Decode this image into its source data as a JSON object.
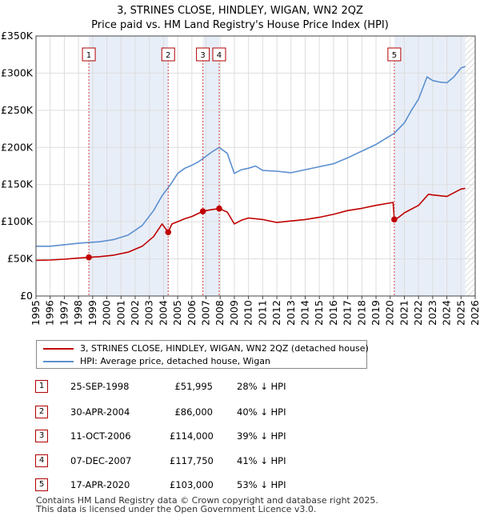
{
  "header": {
    "title": "3, STRINES CLOSE, HINDLEY, WIGAN, WN2 2QZ",
    "subtitle": "Price paid vs. HM Land Registry's House Price Index (HPI)"
  },
  "chart_data": {
    "type": "line",
    "title": "3, STRINES CLOSE, HINDLEY, WIGAN, WN2 2QZ",
    "subtitle": "Price paid vs. HM Land Registry's House Price Index (HPI)",
    "xlabel": "",
    "ylabel": "",
    "xlim": [
      1995,
      2026
    ],
    "ylim": [
      0,
      350000
    ],
    "grid": true,
    "x_ticks": [
      "1995",
      "1996",
      "1997",
      "1998",
      "1999",
      "2000",
      "2001",
      "2002",
      "2003",
      "2004",
      "2005",
      "2006",
      "2007",
      "2008",
      "2009",
      "2010",
      "2011",
      "2012",
      "2013",
      "2014",
      "2015",
      "2016",
      "2017",
      "2018",
      "2019",
      "2020",
      "2021",
      "2022",
      "2023",
      "2024",
      "2025",
      "2026"
    ],
    "y_ticks": [
      "£0",
      "£50K",
      "£100K",
      "£150K",
      "£200K",
      "£250K",
      "£300K",
      "£350K"
    ],
    "y_tick_values": [
      0,
      50000,
      100000,
      150000,
      200000,
      250000,
      300000,
      350000
    ],
    "shaded_periods": [
      [
        1998.73,
        2004.33
      ],
      [
        2006.78,
        2007.93
      ],
      [
        2020.29,
        2025.3
      ]
    ],
    "forecast_hatch_from": 2025.3,
    "series": [
      {
        "name": "3, STRINES CLOSE, HINDLEY, WIGAN, WN2 2QZ (detached house)",
        "color": "#c00000",
        "points": [
          [
            1995.0,
            48000
          ],
          [
            1996.0,
            48500
          ],
          [
            1997.0,
            49500
          ],
          [
            1998.0,
            51000
          ],
          [
            1998.73,
            51995
          ],
          [
            1999.5,
            53000
          ],
          [
            2000.5,
            55000
          ],
          [
            2001.5,
            59000
          ],
          [
            2002.5,
            67000
          ],
          [
            2003.3,
            80000
          ],
          [
            2003.9,
            97000
          ],
          [
            2004.25,
            88000
          ],
          [
            2004.33,
            86000
          ],
          [
            2004.6,
            97000
          ],
          [
            2005.0,
            100000
          ],
          [
            2005.5,
            104000
          ],
          [
            2006.0,
            107000
          ],
          [
            2006.78,
            114000
          ],
          [
            2007.3,
            116000
          ],
          [
            2007.93,
            117750
          ],
          [
            2008.5,
            113000
          ],
          [
            2009.0,
            97000
          ],
          [
            2009.5,
            102000
          ],
          [
            2010.0,
            105000
          ],
          [
            2011.0,
            103000
          ],
          [
            2012.0,
            99000
          ],
          [
            2013.0,
            101000
          ],
          [
            2014.0,
            103000
          ],
          [
            2015.0,
            106000
          ],
          [
            2016.0,
            110000
          ],
          [
            2017.0,
            115000
          ],
          [
            2018.0,
            118000
          ],
          [
            2019.0,
            122000
          ],
          [
            2020.2,
            126000
          ],
          [
            2020.29,
            103000
          ],
          [
            2020.6,
            106000
          ],
          [
            2021.0,
            112000
          ],
          [
            2022.0,
            122000
          ],
          [
            2022.7,
            137000
          ],
          [
            2023.0,
            136000
          ],
          [
            2024.0,
            134000
          ],
          [
            2024.5,
            139000
          ],
          [
            2025.0,
            144000
          ],
          [
            2025.3,
            145000
          ]
        ]
      },
      {
        "name": "HPI: Average price, detached house, Wigan",
        "color": "#5b8fd0",
        "points": [
          [
            1995.0,
            67000
          ],
          [
            1996.0,
            67000
          ],
          [
            1997.0,
            69000
          ],
          [
            1998.0,
            71000
          ],
          [
            1998.73,
            72000
          ],
          [
            1999.5,
            73000
          ],
          [
            2000.5,
            76000
          ],
          [
            2001.5,
            82000
          ],
          [
            2002.5,
            95000
          ],
          [
            2003.3,
            115000
          ],
          [
            2003.9,
            135000
          ],
          [
            2004.5,
            150000
          ],
          [
            2005.0,
            165000
          ],
          [
            2005.5,
            172000
          ],
          [
            2006.0,
            176000
          ],
          [
            2006.5,
            181000
          ],
          [
            2007.0,
            188000
          ],
          [
            2007.5,
            195000
          ],
          [
            2007.93,
            200000
          ],
          [
            2008.5,
            192000
          ],
          [
            2009.0,
            165000
          ],
          [
            2009.5,
            170000
          ],
          [
            2010.0,
            172000
          ],
          [
            2010.5,
            175000
          ],
          [
            2011.0,
            169000
          ],
          [
            2012.0,
            168000
          ],
          [
            2013.0,
            166000
          ],
          [
            2014.0,
            170000
          ],
          [
            2015.0,
            174000
          ],
          [
            2016.0,
            178000
          ],
          [
            2017.0,
            186000
          ],
          [
            2018.0,
            195000
          ],
          [
            2019.0,
            204000
          ],
          [
            2020.29,
            219000
          ],
          [
            2021.0,
            233000
          ],
          [
            2021.5,
            250000
          ],
          [
            2022.0,
            265000
          ],
          [
            2022.6,
            295000
          ],
          [
            2023.0,
            290000
          ],
          [
            2023.5,
            288000
          ],
          [
            2024.0,
            287000
          ],
          [
            2024.5,
            295000
          ],
          [
            2025.0,
            307000
          ],
          [
            2025.3,
            309000
          ]
        ]
      }
    ],
    "sales": [
      {
        "label": "1",
        "year": 1998.73,
        "price": 51995
      },
      {
        "label": "2",
        "year": 2004.33,
        "price": 86000
      },
      {
        "label": "3",
        "year": 2006.78,
        "price": 114000
      },
      {
        "label": "4",
        "year": 2007.93,
        "price": 117750
      },
      {
        "label": "5",
        "year": 2020.29,
        "price": 103000
      }
    ]
  },
  "legend": {
    "property": "3, STRINES CLOSE, HINDLEY, WIGAN, WN2 2QZ (detached house)",
    "hpi": "HPI: Average price, detached house, Wigan"
  },
  "table": [
    {
      "num": "1",
      "date": "25-SEP-1998",
      "price": "£51,995",
      "hpi": "28% ↓ HPI"
    },
    {
      "num": "2",
      "date": "30-APR-2004",
      "price": "£86,000",
      "hpi": "40% ↓ HPI"
    },
    {
      "num": "3",
      "date": "11-OCT-2006",
      "price": "£114,000",
      "hpi": "39% ↓ HPI"
    },
    {
      "num": "4",
      "date": "07-DEC-2007",
      "price": "£117,750",
      "hpi": "41% ↓ HPI"
    },
    {
      "num": "5",
      "date": "17-APR-2020",
      "price": "£103,000",
      "hpi": "53% ↓ HPI"
    }
  ],
  "footer": {
    "line1": "Contains HM Land Registry data © Crown copyright and database right 2025.",
    "line2": "This data is licensed under the Open Government Licence v3.0."
  },
  "colors": {
    "property": "#c00000",
    "hpi": "#5b8fd0",
    "shade": "#e8eef8",
    "grid": "#dddddd",
    "sale_line": "#d04040"
  }
}
